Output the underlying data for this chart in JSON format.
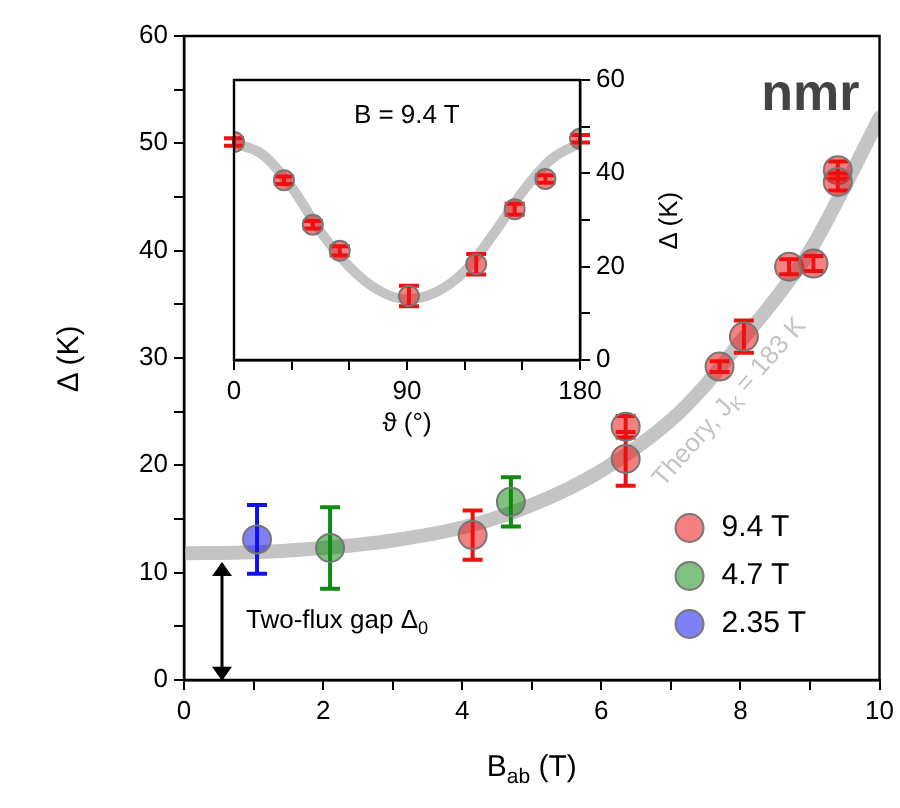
{
  "chart_data": [
    {
      "type": "scatter",
      "xlabel": "B$_{ab}$ (T)",
      "ylabel": "Δ (K)",
      "xlim": [
        0,
        10
      ],
      "ylim": [
        0,
        60
      ],
      "xticks": [
        0,
        {
          "value": 1,
          "label": null
        },
        2,
        {
          "value": 3,
          "label": null
        },
        4,
        {
          "value": 5,
          "label": null
        },
        6,
        {
          "value": 7,
          "label": null
        },
        8,
        {
          "value": 9,
          "label": null
        },
        10
      ],
      "yticks": [
        0,
        {
          "value": 5,
          "label": null
        },
        10,
        {
          "value": 15,
          "label": null
        },
        20,
        {
          "value": 25,
          "label": null
        },
        30,
        {
          "value": 35,
          "label": null
        },
        40,
        {
          "value": 45,
          "label": null
        },
        50,
        {
          "value": 55,
          "label": null
        },
        60
      ],
      "grid": false,
      "legend": "bottom right",
      "annotations": [
        "nmr",
        "Two-flux gap Δ$_{0}$"
      ],
      "series": [
        {
          "type": "line",
          "name": "Theory, J$_{K}$ = 183 K",
          "color": "#c4c4c4",
          "marker": "none",
          "x": [
            0,
            1,
            2,
            3,
            4,
            5,
            6,
            7,
            7.5,
            8,
            8.5,
            9,
            9.5,
            10
          ],
          "values": [
            11.8,
            11.9,
            12.3,
            13.0,
            14.2,
            16.3,
            19.5,
            24.2,
            27.5,
            31.5,
            35.5,
            40.0,
            46.0,
            52.4
          ]
        },
        {
          "name": "9.4 T",
          "color": "#ee1111",
          "marker": "circle",
          "x": [
            4.15,
            6.35,
            6.35,
            7.7,
            8.05,
            8.7,
            9.05,
            9.4,
            9.4
          ],
          "values": [
            13.5,
            20.6,
            23.6,
            29.2,
            32.0,
            38.5,
            38.8,
            47.5,
            46.4
          ],
          "errors": [
            2.3,
            2.5,
            1,
            0.5,
            1.5,
            0.7,
            0.7,
            0.8,
            0.8
          ]
        },
        {
          "name": "4.7 T",
          "color": "#118811",
          "marker": "circle",
          "x": [
            2.1,
            4.7
          ],
          "values": [
            12.3,
            16.6
          ],
          "errors": [
            3.8,
            2.3
          ]
        },
        {
          "name": "2.35 T",
          "color": "#1111ee",
          "marker": "circle",
          "x": [
            1.05
          ],
          "values": [
            13.1
          ],
          "errors": [
            3.2
          ]
        }
      ]
    },
    {
      "type": "scatter",
      "xlabel": "ϑ (°)",
      "y2label": "Δ (K)",
      "xlim": [
        0,
        180
      ],
      "y2lim": [
        0,
        60
      ],
      "xticks": [
        0,
        {
          "value": 30,
          "label": null
        },
        {
          "value": 60,
          "label": null
        },
        90,
        {
          "value": 120,
          "label": null
        },
        {
          "value": 150,
          "label": null
        },
        180
      ],
      "y2ticks": [
        0,
        {
          "value": 10,
          "label": null
        },
        20,
        {
          "value": 30,
          "label": null
        },
        40,
        {
          "value": 50,
          "label": null
        },
        60
      ],
      "grid": false,
      "annotations": [
        "B = 9.4 T"
      ],
      "series": [
        {
          "type": "line",
          "axis": "y2",
          "color": "#c4c4c4",
          "marker": "none",
          "x": [
            0,
            15,
            30,
            45,
            60,
            75,
            90,
            105,
            120,
            135,
            150,
            165,
            180
          ],
          "values": [
            46.5,
            44,
            37,
            27.5,
            20,
            15,
            13,
            14.5,
            19,
            27,
            36,
            43,
            46.5
          ]
        },
        {
          "axis": "y2",
          "color": "#ee1111",
          "marker": "circle",
          "x": [
            0,
            26,
            41,
            55,
            91,
            126,
            146,
            162,
            180
          ],
          "values": [
            46.7,
            38.5,
            29.0,
            23.4,
            13.7,
            20.5,
            32.3,
            38.8,
            47.4
          ],
          "errors": [
            0.8,
            0.8,
            0.8,
            1,
            2.2,
            2.2,
            1.2,
            0.8,
            0.8
          ]
        }
      ]
    }
  ]
}
